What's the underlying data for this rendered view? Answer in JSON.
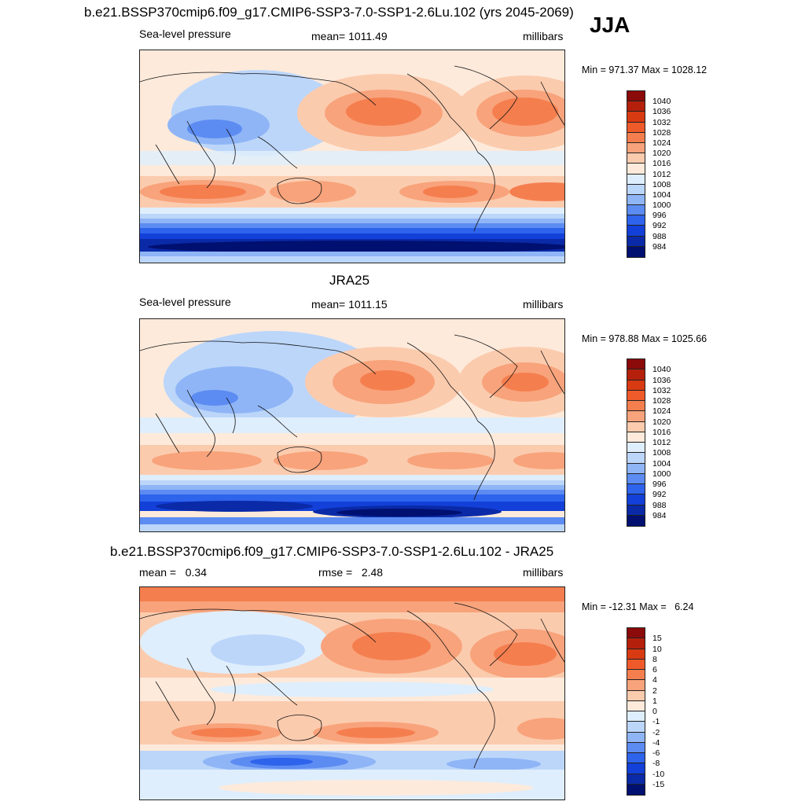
{
  "season": "JJA",
  "panels": [
    {
      "title": "b.e21.BSSP370cmip6.f09_g17.CMIP6-SSP3-7.0-SSP1-2.6Lu.102 (yrs 2045-2069)",
      "left_label": "Sea-level pressure",
      "center_label": "mean= 1011.49",
      "right_label": "millibars",
      "minmax": "Min = 971.37 Max = 1028.12",
      "colorbar_labels": [
        "1040",
        "1036",
        "1032",
        "1028",
        "1024",
        "1020",
        "1016",
        "1012",
        "1008",
        "1004",
        "1000",
        "996",
        "992",
        "988",
        "984"
      ],
      "colors": [
        "#8b0a0a",
        "#b5200c",
        "#d83a12",
        "#ef5a2a",
        "#f57e4f",
        "#f8a37b",
        "#fbcbae",
        "#fdeadb",
        "#dfeefc",
        "#bcd6fa",
        "#8fb5f6",
        "#5c8cf2",
        "#2e63ec",
        "#1240d8",
        "#0a2aa8",
        "#001070"
      ]
    },
    {
      "title": "JRA25",
      "left_label": "Sea-level pressure",
      "center_label": "mean= 1011.15",
      "right_label": "millibars",
      "minmax": "Min = 978.88 Max = 1025.66",
      "colorbar_labels": [
        "1040",
        "1036",
        "1032",
        "1028",
        "1024",
        "1020",
        "1016",
        "1012",
        "1008",
        "1004",
        "1000",
        "996",
        "992",
        "988",
        "984"
      ],
      "colors": [
        "#8b0a0a",
        "#b5200c",
        "#d83a12",
        "#ef5a2a",
        "#f57e4f",
        "#f8a37b",
        "#fbcbae",
        "#fdeadb",
        "#dfeefc",
        "#bcd6fa",
        "#8fb5f6",
        "#5c8cf2",
        "#2e63ec",
        "#1240d8",
        "#0a2aa8",
        "#001070"
      ]
    },
    {
      "title": "b.e21.BSSP370cmip6.f09_g17.CMIP6-SSP3-7.0-SSP1-2.6Lu.102 - JRA25",
      "left_label": "mean =   0.34",
      "center_label": "rmse =   2.48",
      "right_label": "millibars",
      "minmax": "Min = -12.31 Max =   6.24",
      "colorbar_labels": [
        "15",
        "10",
        "8",
        "6",
        "4",
        "2",
        "1",
        "0",
        "-1",
        "-2",
        "-4",
        "-6",
        "-8",
        "-10",
        "-15"
      ],
      "colors": [
        "#8b0a0a",
        "#b5200c",
        "#d83a12",
        "#ef5a2a",
        "#f57e4f",
        "#f8a37b",
        "#fbcbae",
        "#fdeadb",
        "#dfeefc",
        "#bcd6fa",
        "#8fb5f6",
        "#5c8cf2",
        "#2e63ec",
        "#1240d8",
        "#0a2aa8",
        "#001070"
      ]
    }
  ]
}
